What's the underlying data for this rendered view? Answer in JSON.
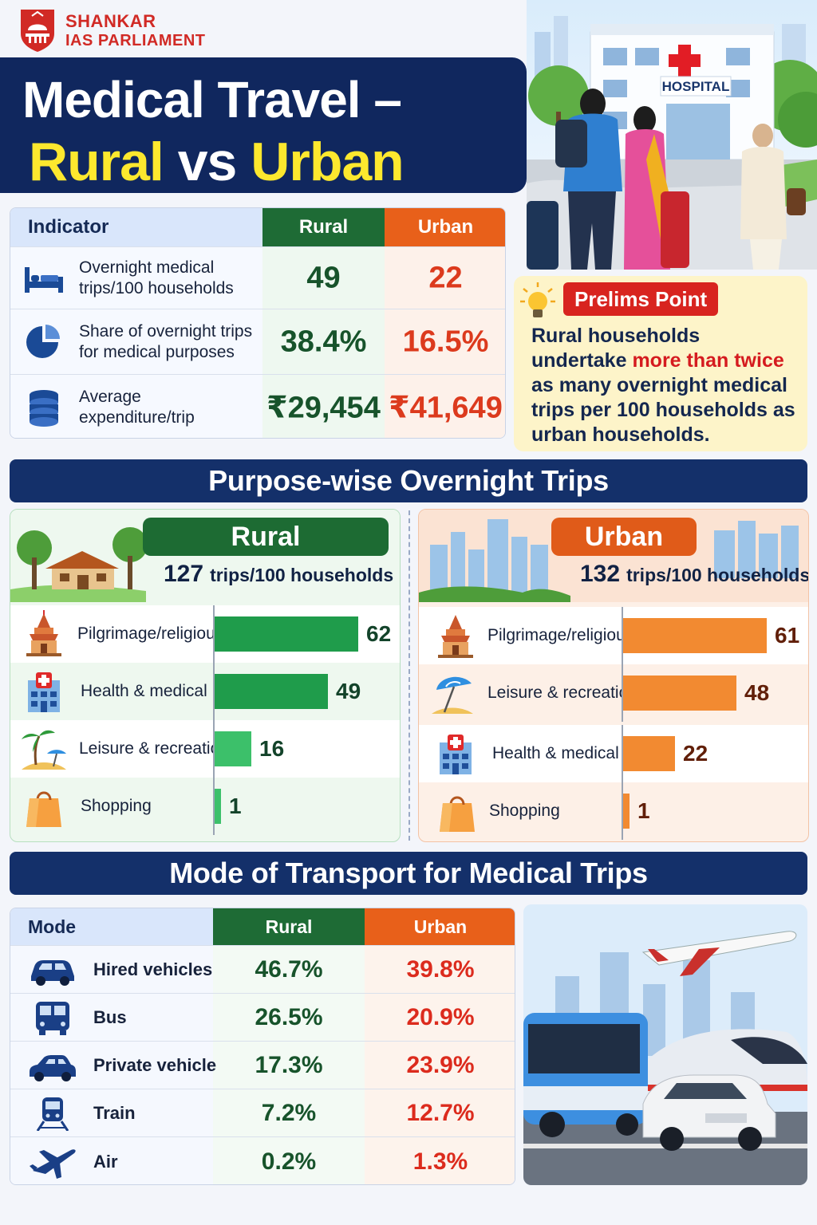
{
  "brand": {
    "line1": "SHANKAR",
    "line2": "IAS PARLIAMENT"
  },
  "title": {
    "line1": "Medical Travel –",
    "rural": "Rural",
    "vs": " vs ",
    "urban": "Urban"
  },
  "hero": {
    "hospital_sign": "HOSPITAL"
  },
  "indicators": {
    "header": {
      "indicator": "Indicator",
      "rural": "Rural",
      "urban": "Urban"
    },
    "rows": [
      {
        "label": "Overnight medical trips/100 households",
        "icon": "bed-icon",
        "rural": "49",
        "urban": "22"
      },
      {
        "label": "Share of overnight trips for medical purposes",
        "icon": "pie-chart-icon",
        "rural": "38.4%",
        "urban": "16.5%"
      },
      {
        "label": "Average expenditure/trip",
        "icon": "coins-stack-icon",
        "rural": "₹29,454",
        "urban": "₹41,649"
      }
    ]
  },
  "prelims": {
    "tag": "Prelims Point",
    "text_before": "Rural households undertake ",
    "highlight": "more than twice",
    "text_after": " as many overnight medical trips per 100 households as urban households."
  },
  "purpose": {
    "heading": "Purpose-wise Overnight Trips",
    "rural": {
      "badge": "Rural",
      "trips_number": "127",
      "trips_unit": "trips/100 households",
      "max": 62,
      "items": [
        {
          "label": "Pilgrimage/religious",
          "icon": "temple-icon",
          "value": 62
        },
        {
          "label": "Health & medical",
          "icon": "hospital-icon",
          "value": 49
        },
        {
          "label": "Leisure & recreation",
          "icon": "beach-icon",
          "value": 16
        },
        {
          "label": "Shopping",
          "icon": "shopping-bag-icon",
          "value": 1
        }
      ]
    },
    "urban": {
      "badge": "Urban",
      "trips_number": "132",
      "trips_unit": "trips/100 households",
      "max": 61,
      "items": [
        {
          "label": "Pilgrimage/religious",
          "icon": "temple-icon",
          "value": 61
        },
        {
          "label": "Leisure & recreation",
          "icon": "beach-umbrella-icon",
          "value": 48
        },
        {
          "label": "Health & medical",
          "icon": "hospital-icon",
          "value": 22
        },
        {
          "label": "Shopping",
          "icon": "shopping-bag-icon",
          "value": 1
        }
      ]
    }
  },
  "mode": {
    "heading": "Mode of Transport for Medical Trips",
    "header": {
      "mode": "Mode",
      "rural": "Rural",
      "urban": "Urban"
    },
    "rows": [
      {
        "label": "Hired vehicles",
        "icon": "car-icon",
        "rural": "46.7%",
        "urban": "39.8%"
      },
      {
        "label": "Bus",
        "icon": "bus-icon",
        "rural": "26.5%",
        "urban": "20.9%"
      },
      {
        "label": "Private vehicle",
        "icon": "car-icon",
        "rural": "17.3%",
        "urban": "23.9%"
      },
      {
        "label": "Train",
        "icon": "train-icon",
        "rural": "7.2%",
        "urban": "12.7%"
      },
      {
        "label": "Air",
        "icon": "airplane-icon",
        "rural": "0.2%",
        "urban": "1.3%"
      }
    ]
  },
  "colors": {
    "navy": "#10275e",
    "rural_green": "#1e6b35",
    "urban_orange": "#e8601a",
    "title_yellow": "#fde82e",
    "alert_red": "#d8241f"
  }
}
